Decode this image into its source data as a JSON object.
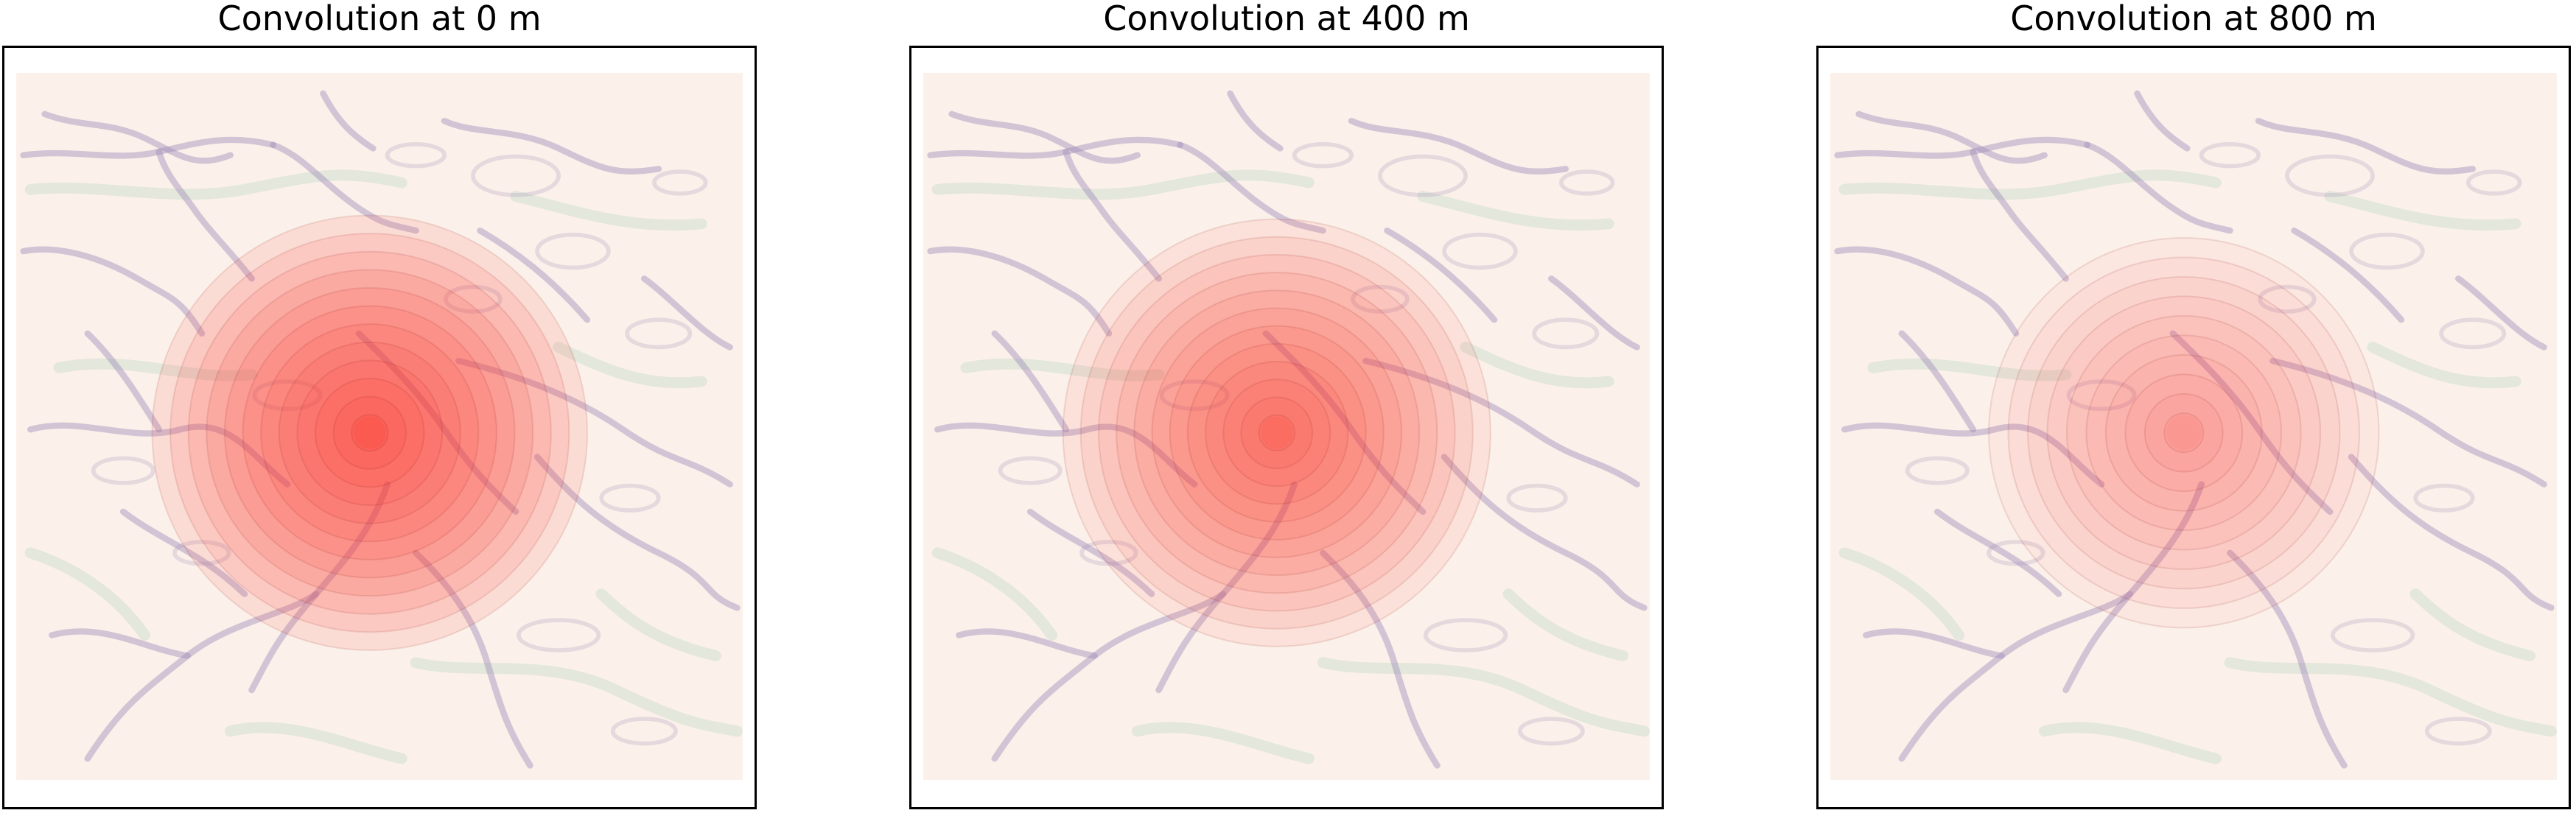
{
  "chart_data": [
    {
      "type": "heatmap",
      "title": "Convolution at 0 m",
      "xlabel": "",
      "ylabel": "",
      "grid": false,
      "legend": "none",
      "overlay": {
        "type": "concentric-rings",
        "ring_count": 12,
        "color": "#ff3b30",
        "outer_radius_fraction": 0.29,
        "peak_opacity": "high"
      }
    },
    {
      "type": "heatmap",
      "title": "Convolution at 400 m",
      "xlabel": "",
      "ylabel": "",
      "grid": false,
      "legend": "none",
      "overlay": {
        "type": "concentric-rings",
        "ring_count": 12,
        "color": "#ff3b30",
        "outer_radius_fraction": 0.285,
        "peak_opacity": "medium"
      }
    },
    {
      "type": "heatmap",
      "title": "Convolution at 800 m",
      "xlabel": "",
      "ylabel": "",
      "grid": false,
      "legend": "none",
      "overlay": {
        "type": "concentric-rings",
        "ring_count": 10,
        "color": "#ff4a3d",
        "outer_radius_fraction": 0.26,
        "peak_opacity": "low"
      }
    }
  ],
  "colors": {
    "terrain_background": "#fbf1ea",
    "terrain_channel": "#9b86b8",
    "terrain_valley": "#a9cdb4",
    "frame": "#000000"
  }
}
